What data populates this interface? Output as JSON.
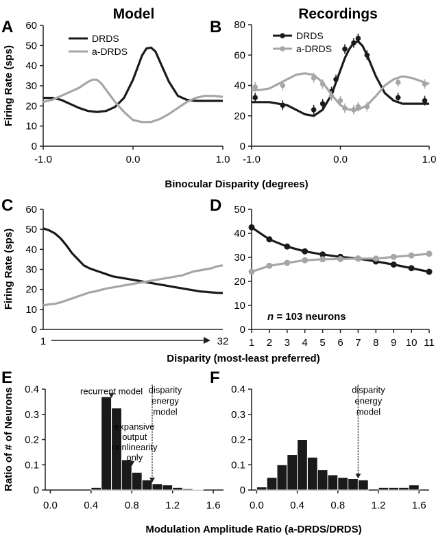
{
  "colors": {
    "drds": "#1a1a1a",
    "adrds": "#a6a6a6",
    "bars": "#1a1a1a",
    "axis": "#231f20"
  },
  "titles": {
    "model": "Model",
    "recordings": "Recordings"
  },
  "shared_labels": {
    "top_xlabel": "Binocular Disparity (degrees)",
    "mid_xlabel": "Disparity (most-least preferred)",
    "bottom_xlabel": "Modulation Amplitude Ratio (a-DRDS/DRDS)",
    "top_ylabel": "Firing Rate (sps)",
    "mid_ylabel": "Firing Rate (sps)",
    "bottom_ylabel": "Ratio of # of Neurons"
  },
  "panel_letters": {
    "A": "A",
    "B": "B",
    "C": "C",
    "D": "D",
    "E": "E",
    "F": "F"
  },
  "chart_data": [
    {
      "panel": "A",
      "type": "line",
      "xlim": [
        -1.0,
        1.0
      ],
      "ylim": [
        0,
        60
      ],
      "xticks": [
        "-1.0",
        "0.0",
        "1.0"
      ],
      "yticks": [
        "0",
        "10",
        "20",
        "30",
        "40",
        "50",
        "60"
      ],
      "legend": [
        "DRDS",
        "a-DRDS"
      ],
      "legend_placement": "top-left",
      "series": [
        {
          "name": "DRDS",
          "color": "drds",
          "x": [
            -1.0,
            -0.9,
            -0.8,
            -0.7,
            -0.6,
            -0.5,
            -0.4,
            -0.3,
            -0.2,
            -0.1,
            0.0,
            0.05,
            0.1,
            0.15,
            0.2,
            0.25,
            0.3,
            0.4,
            0.5,
            0.6,
            0.7,
            0.8,
            0.9,
            1.0
          ],
          "y": [
            24,
            24,
            23,
            21,
            19,
            17.5,
            17,
            17.5,
            19.5,
            24,
            33,
            39,
            45,
            48.5,
            49,
            47,
            42,
            32,
            25,
            23,
            22.5,
            22.5,
            22.5,
            22.5
          ]
        },
        {
          "name": "a-DRDS",
          "color": "adrds",
          "x": [
            -1.0,
            -0.9,
            -0.8,
            -0.7,
            -0.6,
            -0.5,
            -0.45,
            -0.4,
            -0.35,
            -0.3,
            -0.2,
            -0.1,
            0.0,
            0.1,
            0.2,
            0.3,
            0.4,
            0.5,
            0.6,
            0.7,
            0.8,
            0.9,
            1.0
          ],
          "y": [
            22,
            23,
            25,
            27,
            29,
            32,
            33,
            33,
            31,
            28,
            22,
            17,
            13,
            12,
            12,
            13.5,
            16,
            19,
            22,
            24,
            25,
            25,
            24.5
          ]
        }
      ]
    },
    {
      "panel": "B",
      "type": "line",
      "xlim": [
        -1.0,
        1.0
      ],
      "ylim": [
        0,
        80
      ],
      "xticks": [
        "-1.0",
        "0.0",
        "1.0"
      ],
      "yticks": [
        "0",
        "20",
        "40",
        "60",
        "80"
      ],
      "legend": [
        "DRDS",
        "a-DRDS"
      ],
      "legend_placement": "top-left",
      "series": [
        {
          "name": "DRDS",
          "color": "drds",
          "x": [
            -1.0,
            -0.8,
            -0.6,
            -0.5,
            -0.4,
            -0.3,
            -0.2,
            -0.1,
            0.0,
            0.05,
            0.1,
            0.15,
            0.2,
            0.25,
            0.3,
            0.4,
            0.5,
            0.6,
            0.7,
            0.8,
            0.9,
            1.0
          ],
          "y": [
            29,
            29,
            27,
            24,
            21,
            20,
            24,
            34,
            50,
            58,
            64,
            68,
            69,
            66,
            60,
            46,
            35,
            30,
            28,
            28,
            28,
            28
          ],
          "points_x": [
            -0.96,
            -0.65,
            -0.3,
            -0.2,
            -0.1,
            -0.05,
            0.05,
            0.15,
            0.2,
            0.3,
            0.65,
            0.95
          ],
          "points_y": [
            32,
            27,
            24,
            28,
            36,
            44,
            64,
            68,
            71,
            60,
            32,
            30
          ]
        },
        {
          "name": "a-DRDS",
          "color": "adrds",
          "x": [
            -1.0,
            -0.9,
            -0.8,
            -0.7,
            -0.6,
            -0.5,
            -0.4,
            -0.3,
            -0.2,
            -0.1,
            0.0,
            0.1,
            0.2,
            0.3,
            0.4,
            0.5,
            0.6,
            0.7,
            0.8,
            0.9,
            1.0
          ],
          "y": [
            37,
            37,
            38,
            41,
            44,
            47,
            48,
            47,
            42,
            34,
            27,
            24,
            24,
            27,
            33,
            40,
            44,
            46,
            45,
            43,
            41
          ],
          "points_x": [
            -0.96,
            -0.65,
            -0.3,
            -0.2,
            -0.1,
            0.0,
            0.05,
            0.15,
            0.2,
            0.3,
            0.65,
            0.95
          ],
          "points_y": [
            39,
            40,
            45,
            41,
            33,
            30,
            25,
            24,
            26,
            26,
            42,
            41
          ]
        }
      ]
    },
    {
      "panel": "C",
      "type": "line",
      "xlim": [
        1,
        32
      ],
      "ylim": [
        0,
        60
      ],
      "xticks": [
        "1",
        "32"
      ],
      "yticks": [
        "0",
        "10",
        "20",
        "30",
        "40",
        "50",
        "60"
      ],
      "series": [
        {
          "name": "",
          "color": "drds",
          "x": [
            1,
            2,
            3,
            4,
            5,
            6,
            7,
            8,
            9,
            10,
            11,
            12,
            13,
            14,
            15,
            16,
            17,
            18,
            19,
            20,
            21,
            22,
            23,
            24,
            25,
            26,
            27,
            28,
            29,
            30,
            31,
            32
          ],
          "y": [
            50.5,
            49.5,
            48,
            45.5,
            42,
            38,
            35,
            32,
            30.5,
            29.5,
            28.5,
            27.5,
            26.5,
            26,
            25.5,
            25,
            24.5,
            24,
            23.5,
            23,
            22.5,
            22,
            21.5,
            21,
            20.5,
            20,
            19.5,
            19,
            18.8,
            18.5,
            18.3,
            18.2
          ]
        },
        {
          "name": "",
          "color": "adrds",
          "x": [
            1,
            2,
            3,
            4,
            5,
            6,
            7,
            8,
            9,
            10,
            11,
            12,
            13,
            14,
            15,
            16,
            17,
            18,
            19,
            20,
            21,
            22,
            23,
            24,
            25,
            26,
            27,
            28,
            29,
            30,
            31,
            32
          ],
          "y": [
            12,
            12.5,
            12.8,
            13.5,
            14.5,
            15.5,
            16.5,
            17.5,
            18.5,
            19,
            19.8,
            20.5,
            21,
            21.5,
            22,
            22.5,
            23,
            23.5,
            24,
            24.5,
            25,
            25.5,
            26,
            26.5,
            27,
            28,
            29,
            29.5,
            30,
            30.5,
            31.5,
            32
          ]
        }
      ]
    },
    {
      "panel": "D",
      "type": "line",
      "xlim": [
        1,
        11
      ],
      "ylim": [
        0,
        50
      ],
      "xticks": [
        "1",
        "2",
        "3",
        "4",
        "5",
        "6",
        "7",
        "8",
        "9",
        "10",
        "11"
      ],
      "yticks": [
        "0",
        "10",
        "20",
        "30",
        "40",
        "50"
      ],
      "annotation": "103 neurons",
      "series": [
        {
          "name": "",
          "color": "drds",
          "x": [
            1,
            2,
            3,
            4,
            5,
            6,
            7,
            8,
            9,
            10,
            11
          ],
          "y": [
            42.5,
            37.5,
            34.5,
            32.5,
            31.2,
            30.2,
            29.5,
            28.3,
            27,
            25.5,
            24
          ]
        },
        {
          "name": "",
          "color": "adrds",
          "x": [
            1,
            2,
            3,
            4,
            5,
            6,
            7,
            8,
            9,
            10,
            11
          ],
          "y": [
            24,
            26.5,
            27.7,
            28.8,
            29.2,
            29.3,
            29.5,
            29.5,
            30.2,
            30.8,
            31.5
          ]
        }
      ]
    },
    {
      "panel": "E",
      "type": "bar",
      "xlim": [
        -0.05,
        1.7
      ],
      "ylim": [
        0,
        0.4
      ],
      "xticks": [
        "0.0",
        "0.4",
        "0.8",
        "1.2",
        "1.6"
      ],
      "yticks": [
        "0",
        "0.1",
        "0.2",
        "0.3",
        "0.4"
      ],
      "bin_width": 0.1,
      "bin_starts": [
        0.4,
        0.5,
        0.6,
        0.7,
        0.8,
        0.9,
        1.0,
        1.1,
        1.2,
        1.3,
        1.4
      ],
      "values": [
        0.01,
        0.37,
        0.325,
        0.12,
        0.07,
        0.04,
        0.025,
        0.02,
        0.01,
        0.005,
        0.003
      ],
      "annotations": [
        {
          "text": [
            "recurrent model"
          ],
          "x": 0.6,
          "y": 0.36,
          "style": "solid"
        },
        {
          "text": [
            "disparity",
            "energy",
            "model"
          ],
          "x": 1.0,
          "y": 0.025,
          "style": "dotted"
        },
        {
          "text": [
            "expansive",
            "output",
            "nonlinearity",
            "only"
          ],
          "x": 0.8,
          "y": 0.09,
          "style": "solid"
        }
      ]
    },
    {
      "panel": "F",
      "type": "bar",
      "xlim": [
        -0.05,
        1.7
      ],
      "ylim": [
        0,
        0.4
      ],
      "xticks": [
        "0.0",
        "0.4",
        "0.8",
        "1.2",
        "1.6"
      ],
      "yticks": [
        "0",
        "0.1",
        "0.2",
        "0.3",
        "0.4"
      ],
      "bin_width": 0.1,
      "bin_starts": [
        0.0,
        0.1,
        0.2,
        0.3,
        0.4,
        0.5,
        0.6,
        0.7,
        0.8,
        0.9,
        1.0,
        1.1,
        1.2,
        1.3,
        1.4,
        1.5
      ],
      "values": [
        0.012,
        0.05,
        0.1,
        0.14,
        0.2,
        0.13,
        0.08,
        0.06,
        0.05,
        0.045,
        0.04,
        0.0,
        0.01,
        0.01,
        0.01,
        0.02
      ],
      "annotations": [
        {
          "text": [
            "disparity",
            "energy",
            "model"
          ],
          "x": 1.0,
          "y": 0.04,
          "style": "dotted"
        }
      ]
    }
  ]
}
